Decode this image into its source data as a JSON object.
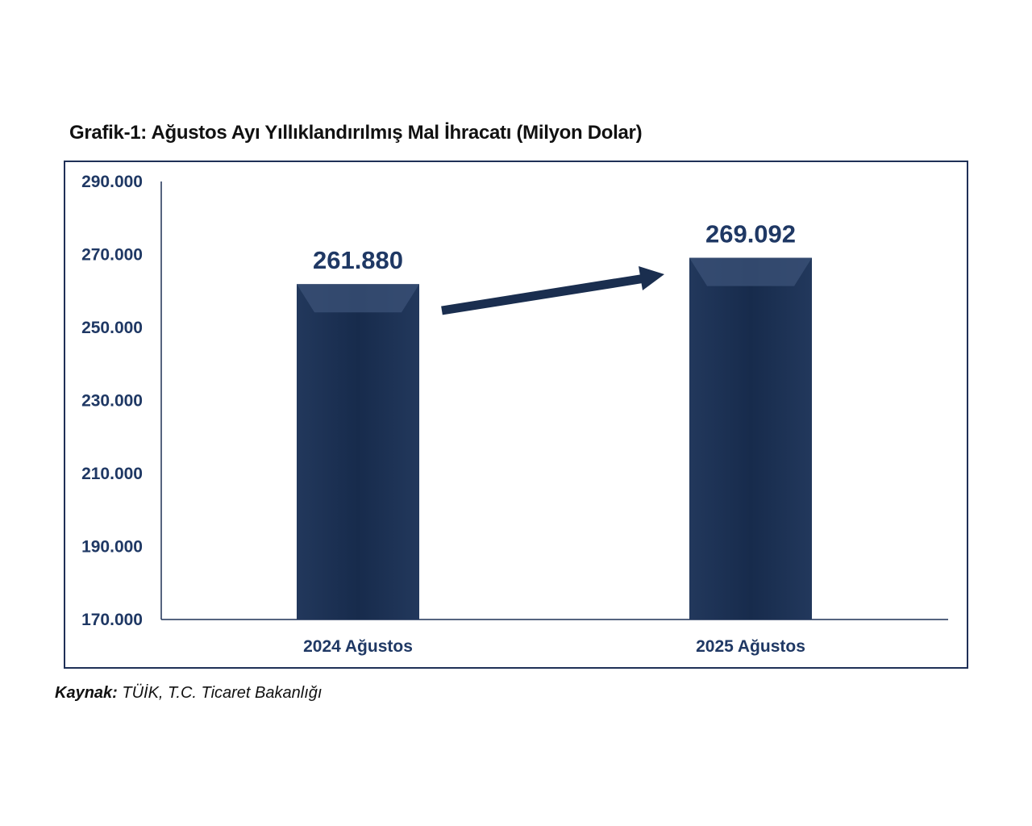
{
  "chart_data": {
    "type": "bar",
    "title": "Grafik-1: Ağustos Ayı Yıllıklandırılmış Mal İhracatı (Milyon Dolar)",
    "categories": [
      "2024 Ağustos",
      "2025 Ağustos"
    ],
    "values": [
      261880,
      269092
    ],
    "value_labels": [
      "261.880",
      "269.092"
    ],
    "ylim": [
      170000,
      290000
    ],
    "yticks": [
      "170.000",
      "190.000",
      "210.000",
      "230.000",
      "250.000",
      "270.000",
      "290.000"
    ],
    "ytick_values": [
      170000,
      190000,
      210000,
      230000,
      250000,
      270000,
      290000
    ],
    "xlabel": "",
    "ylabel": "",
    "grid": false,
    "annotation": "upward trend arrow between bars",
    "colors": {
      "bar": "#1a2e4f",
      "text": "#1f3864"
    }
  },
  "source": {
    "label": "Kaynak:",
    "text": " TÜİK, T.C. Ticaret Bakanlığı"
  }
}
